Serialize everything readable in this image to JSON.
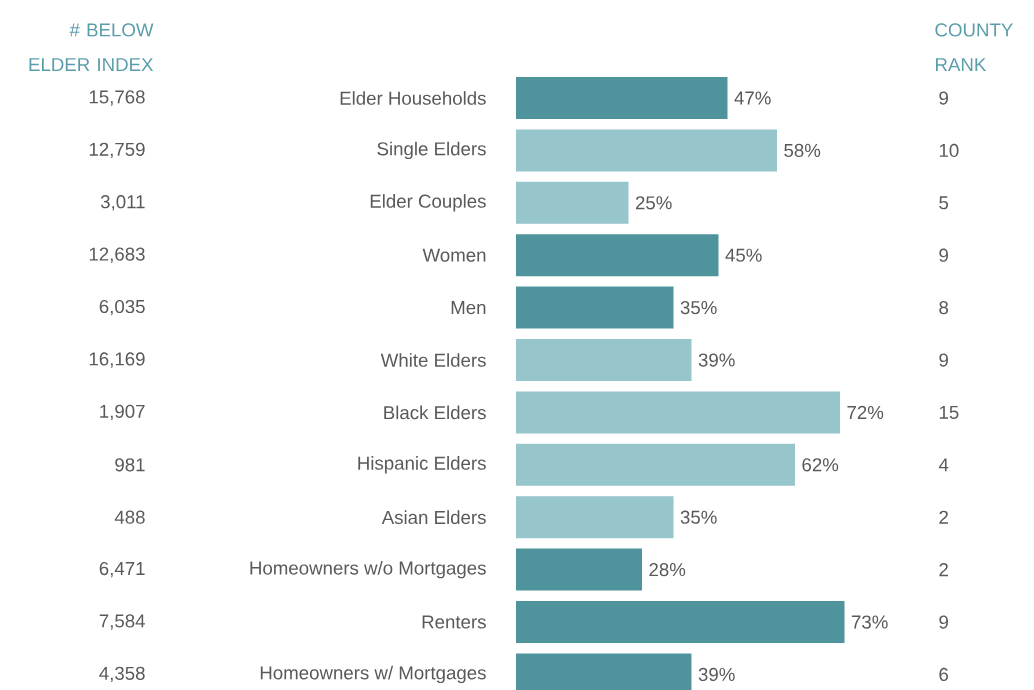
{
  "chart_data": {
    "type": "bar",
    "orientation": "horizontal",
    "categories": [
      "Elder Households",
      "Single Elders",
      "Elder Couples",
      "Women",
      "Men",
      "White Elders",
      "Black Elders",
      "Hispanic Elders",
      "Asian Elders",
      "Homeowners w/o Mortgages",
      "Renters",
      "Homeowners w/ Mortgages"
    ],
    "values": [
      47,
      58,
      25,
      45,
      35,
      39,
      72,
      62,
      35,
      28,
      73,
      39
    ],
    "value_labels": [
      "47%",
      "58%",
      "25%",
      "45%",
      "35%",
      "39%",
      "72%",
      "62%",
      "35%",
      "28%",
      "73%",
      "39%"
    ],
    "colors": [
      "#4f939d",
      "#96c5cc",
      "#96c5cc",
      "#4f939d",
      "#4f939d",
      "#96c5cc",
      "#96c5cc",
      "#96c5cc",
      "#96c5cc",
      "#4f939d",
      "#4f939d",
      "#4f939d"
    ],
    "annotations": [
      "# BELOW ELDER INDEX",
      "15,768",
      "12,759",
      "3,011",
      "12,683",
      "6,035",
      "16,169",
      "1,907",
      "981",
      "488",
      "6,471",
      "7,584",
      "4,358",
      "COUNTY RANK",
      "9",
      "10",
      "5",
      "9",
      "8",
      "9",
      "15",
      "4",
      "2",
      "2",
      "9",
      "6"
    ]
  }
}
